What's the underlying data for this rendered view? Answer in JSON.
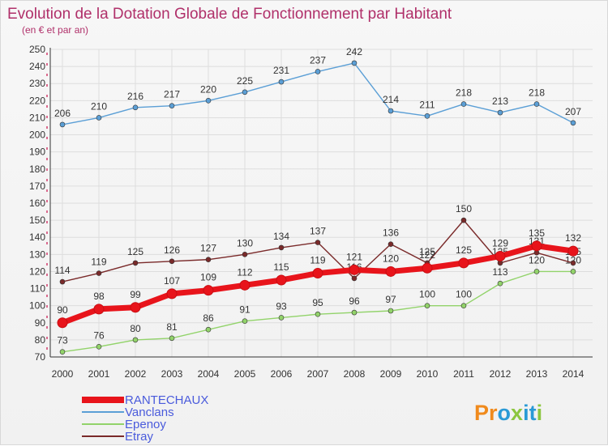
{
  "header": {
    "title": "Evolution de la Dotation Globale de Fonctionnement par Habitant",
    "subtitle": "(en € et par an)"
  },
  "brand": {
    "letters": [
      "P",
      "r",
      "o",
      "x",
      "i",
      "t",
      "i"
    ],
    "colors": [
      "#f08a1c",
      "#f08a1c",
      "#2a9ad6",
      "#8cc63f",
      "#2a9ad6",
      "#2a9ad6",
      "#8cc63f"
    ]
  },
  "chart_data": {
    "type": "line",
    "title": "Evolution de la Dotation Globale de Fonctionnement par Habitant",
    "subtitle": "(en € et par an)",
    "x": [
      "2000",
      "2001",
      "2002",
      "2003",
      "2004",
      "2005",
      "2006",
      "2007",
      "2008",
      "2009",
      "2010",
      "2011",
      "2012",
      "2013",
      "2014"
    ],
    "ylim": [
      70,
      250
    ],
    "yticks": [
      70,
      80,
      90,
      100,
      110,
      120,
      130,
      140,
      150,
      160,
      170,
      180,
      190,
      200,
      210,
      220,
      230,
      240,
      250
    ],
    "grid": true,
    "legend_position": "bottom-left",
    "series": [
      {
        "name": "RANTECHAUX",
        "color": "#e8141b",
        "values": [
          90,
          98,
          99,
          107,
          109,
          112,
          115,
          119,
          121,
          120,
          122,
          125,
          129,
          135,
          132
        ]
      },
      {
        "name": "Vanclans",
        "color": "#5b9fd6",
        "values": [
          206,
          210,
          216,
          217,
          220,
          225,
          231,
          237,
          242,
          214,
          211,
          218,
          213,
          218,
          207
        ]
      },
      {
        "name": "Epenoy",
        "color": "#92d36a",
        "values": [
          73,
          76,
          80,
          81,
          86,
          91,
          93,
          95,
          96,
          97,
          100,
          100,
          113,
          120,
          120
        ]
      },
      {
        "name": "Etray",
        "color": "#7a2a2a",
        "values": [
          114,
          119,
          125,
          126,
          127,
          130,
          134,
          137,
          116,
          136,
          125,
          150,
          125,
          131,
          125
        ]
      }
    ]
  }
}
